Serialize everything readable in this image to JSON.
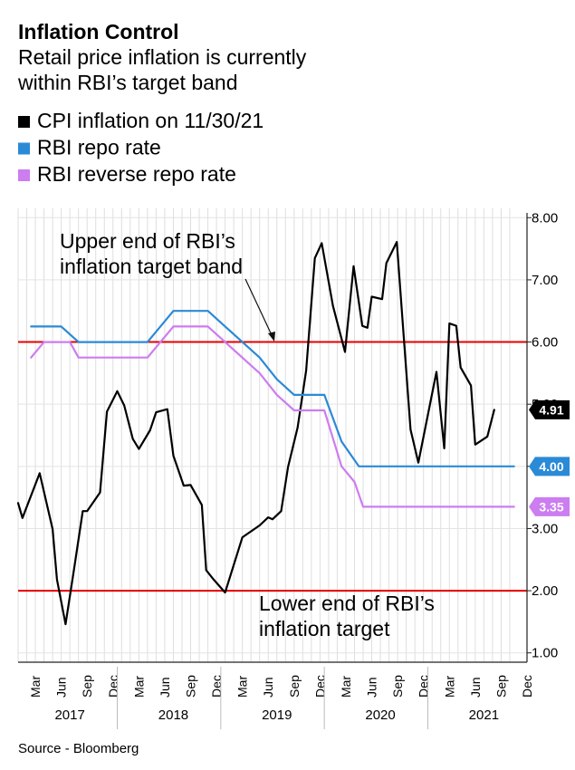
{
  "title": "Inflation Control",
  "subtitle": [
    "Retail price inflation is currently",
    "within RBI’s target band"
  ],
  "source": "Source - Bloomberg",
  "chart_data": {
    "type": "line",
    "ylim": [
      0.85,
      8.15
    ],
    "y_ticks": [
      "8.00",
      "7.00",
      "6.00",
      "5.00",
      "4.00",
      "3.00",
      "2.00",
      "1.00"
    ],
    "y_tick_values": [
      8,
      7,
      6,
      5,
      4,
      3,
      2,
      1
    ],
    "x_month_labels": [
      "Mar",
      "Jun",
      "Sep",
      "Dec"
    ],
    "x_years": [
      "2017",
      "2018",
      "2019",
      "2020",
      "2021"
    ],
    "x_range_months": [
      0,
      59
    ],
    "grid": true,
    "legend_position": "top-left",
    "series": [
      {
        "name": "CPI inflation on 11/30/21",
        "color": "#000000",
        "end_label": "4.91",
        "points": [
          [
            0,
            3.41
          ],
          [
            0.5,
            3.17
          ],
          [
            2.5,
            3.89
          ],
          [
            4,
            2.99
          ],
          [
            4.5,
            2.18
          ],
          [
            5.5,
            1.46
          ],
          [
            6.5,
            2.36
          ],
          [
            7.5,
            3.28
          ],
          [
            8,
            3.28
          ],
          [
            9.5,
            3.58
          ],
          [
            10.3,
            4.88
          ],
          [
            11.5,
            5.21
          ],
          [
            12.3,
            4.98
          ],
          [
            13.3,
            4.44
          ],
          [
            14,
            4.28
          ],
          [
            15.3,
            4.58
          ],
          [
            16,
            4.87
          ],
          [
            17.3,
            4.92
          ],
          [
            18,
            4.17
          ],
          [
            19.2,
            3.69
          ],
          [
            20,
            3.7
          ],
          [
            21.3,
            3.38
          ],
          [
            21.8,
            2.33
          ],
          [
            22.6,
            2.19
          ],
          [
            24,
            1.97
          ],
          [
            26,
            2.86
          ],
          [
            28,
            3.05
          ],
          [
            29,
            3.18
          ],
          [
            29.5,
            3.15
          ],
          [
            30.5,
            3.28
          ],
          [
            31.3,
            3.99
          ],
          [
            32.4,
            4.62
          ],
          [
            33.4,
            5.54
          ],
          [
            34.4,
            7.35
          ],
          [
            35.2,
            7.59
          ],
          [
            36.5,
            6.58
          ],
          [
            37.9,
            5.84
          ],
          [
            38.9,
            7.22
          ],
          [
            39.9,
            6.26
          ],
          [
            40.5,
            6.23
          ],
          [
            41,
            6.73
          ],
          [
            42.2,
            6.69
          ],
          [
            42.7,
            7.27
          ],
          [
            43.9,
            7.61
          ],
          [
            45.5,
            4.59
          ],
          [
            46.4,
            4.06
          ],
          [
            48.5,
            5.52
          ],
          [
            49.4,
            4.29
          ],
          [
            50,
            6.3
          ],
          [
            50.8,
            6.26
          ],
          [
            51.3,
            5.59
          ],
          [
            52.5,
            5.3
          ],
          [
            53,
            4.35
          ],
          [
            54.4,
            4.48
          ],
          [
            55.2,
            4.91
          ]
        ]
      },
      {
        "name": "RBI repo rate",
        "color": "#2a8ad6",
        "end_label": "4.00",
        "points": [
          [
            1.5,
            6.25
          ],
          [
            5,
            6.25
          ],
          [
            7,
            6.0
          ],
          [
            15,
            6.0
          ],
          [
            18,
            6.5
          ],
          [
            22,
            6.5
          ],
          [
            24,
            6.25
          ],
          [
            28,
            5.75
          ],
          [
            30,
            5.4
          ],
          [
            32,
            5.15
          ],
          [
            35.5,
            5.15
          ],
          [
            37.5,
            4.4
          ],
          [
            39.5,
            4.0
          ],
          [
            57.5,
            4.0
          ]
        ]
      },
      {
        "name": "RBI reverse repo rate",
        "color": "#cc7df0",
        "end_label": "3.35",
        "points": [
          [
            1.5,
            5.75
          ],
          [
            3,
            6.0
          ],
          [
            6,
            6.0
          ],
          [
            7,
            5.75
          ],
          [
            15,
            5.75
          ],
          [
            18,
            6.25
          ],
          [
            22,
            6.25
          ],
          [
            24,
            6.0
          ],
          [
            28,
            5.5
          ],
          [
            30,
            5.15
          ],
          [
            32,
            4.9
          ],
          [
            35.5,
            4.9
          ],
          [
            37.5,
            4.0
          ],
          [
            39,
            3.75
          ],
          [
            40,
            3.35
          ],
          [
            57.5,
            3.35
          ]
        ]
      }
    ],
    "reference_lines": [
      {
        "y": 6.0,
        "color": "#e60000",
        "label": [
          "Upper end of RBI’s",
          "inflation target band"
        ]
      },
      {
        "y": 2.0,
        "color": "#e60000",
        "label": [
          "Lower end of RBI’s",
          "inflation target"
        ]
      }
    ]
  }
}
